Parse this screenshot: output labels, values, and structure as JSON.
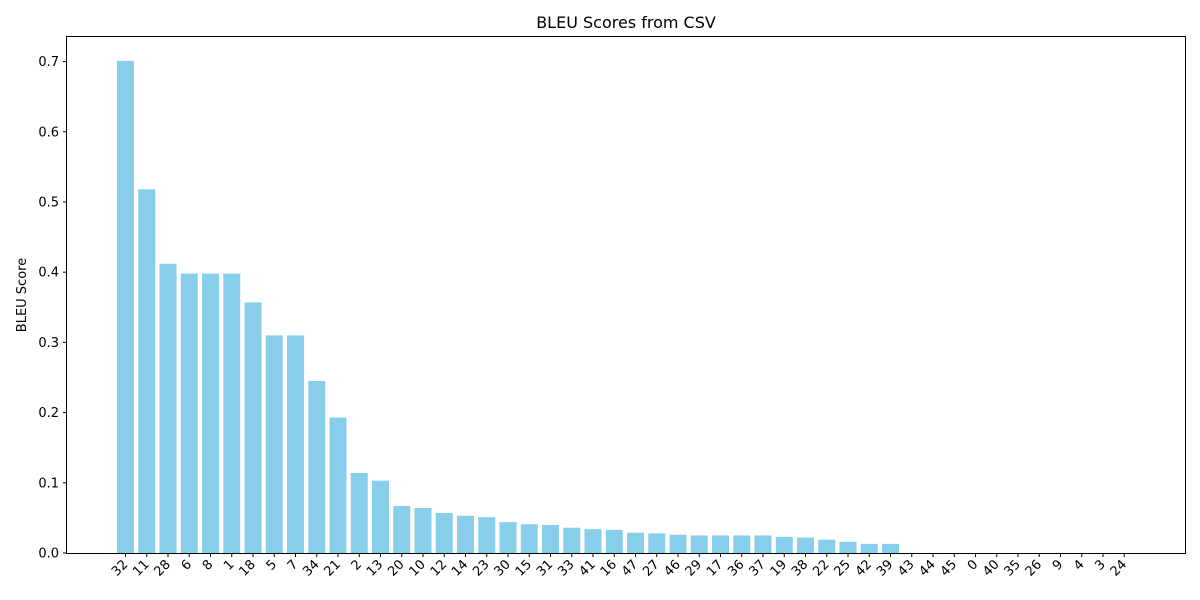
{
  "chart_data": {
    "type": "bar",
    "title": "BLEU Scores from CSV",
    "xlabel": "",
    "ylabel": "BLEU Score",
    "ylim": [
      0,
      0.735
    ],
    "yticks": [
      "0.0",
      "0.1",
      "0.2",
      "0.3",
      "0.4",
      "0.5",
      "0.6",
      "0.7"
    ],
    "grid": false,
    "bar_color": "#87ceeb",
    "categories": [
      "32",
      "11",
      "28",
      "6",
      "8",
      "1",
      "18",
      "5",
      "7",
      "34",
      "21",
      "2",
      "13",
      "20",
      "10",
      "12",
      "14",
      "23",
      "30",
      "15",
      "31",
      "33",
      "41",
      "16",
      "47",
      "27",
      "46",
      "29",
      "17",
      "36",
      "37",
      "19",
      "38",
      "22",
      "25",
      "42",
      "39",
      "43",
      "44",
      "45",
      "0",
      "40",
      "35",
      "26",
      "9",
      "4",
      "3",
      "24"
    ],
    "values": [
      0.701,
      0.518,
      0.412,
      0.398,
      0.398,
      0.398,
      0.357,
      0.31,
      0.31,
      0.245,
      0.193,
      0.114,
      0.103,
      0.067,
      0.064,
      0.057,
      0.053,
      0.051,
      0.044,
      0.041,
      0.04,
      0.036,
      0.034,
      0.033,
      0.029,
      0.028,
      0.026,
      0.025,
      0.025,
      0.025,
      0.025,
      0.023,
      0.022,
      0.019,
      0.016,
      0.013,
      0.013,
      0,
      0,
      0,
      0,
      0,
      0,
      0,
      0,
      0,
      0,
      0
    ]
  }
}
